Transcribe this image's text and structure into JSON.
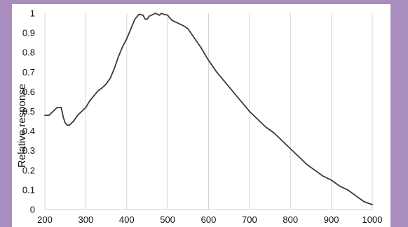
{
  "chart_data": {
    "type": "line",
    "title": "",
    "xlabel": "",
    "ylabel": "Relative response",
    "xlim": [
      200,
      1000
    ],
    "ylim": [
      0,
      1
    ],
    "x_ticks": [
      200,
      300,
      400,
      500,
      600,
      700,
      800,
      900,
      1000
    ],
    "y_ticks": [
      0,
      0.1,
      0.2,
      0.3,
      0.4,
      0.5,
      0.6,
      0.7,
      0.8,
      0.9,
      1
    ],
    "y_tick_labels": [
      "0",
      "0.1",
      "0.2",
      "0.3",
      "0.4",
      "0.5",
      "0.6",
      "0.7",
      "0.8",
      "0.9",
      "1"
    ],
    "grid": {
      "vertical": true,
      "horizontal": false
    },
    "series": [
      {
        "color": "#3a3a3a",
        "x": [
          200,
          210,
          220,
          230,
          240,
          245,
          250,
          255,
          260,
          270,
          280,
          290,
          300,
          310,
          320,
          330,
          340,
          350,
          360,
          370,
          380,
          390,
          400,
          410,
          420,
          430,
          440,
          445,
          450,
          455,
          460,
          470,
          480,
          485,
          490,
          500,
          510,
          520,
          530,
          540,
          550,
          560,
          570,
          580,
          600,
          620,
          640,
          660,
          680,
          700,
          720,
          740,
          760,
          780,
          800,
          820,
          840,
          860,
          880,
          900,
          920,
          940,
          960,
          980,
          1000
        ],
        "y": [
          0.48,
          0.48,
          0.5,
          0.52,
          0.52,
          0.47,
          0.44,
          0.43,
          0.43,
          0.45,
          0.48,
          0.5,
          0.52,
          0.555,
          0.58,
          0.605,
          0.62,
          0.64,
          0.67,
          0.72,
          0.78,
          0.83,
          0.87,
          0.92,
          0.97,
          0.995,
          0.99,
          0.97,
          0.97,
          0.985,
          0.99,
          1.0,
          0.99,
          1.0,
          0.995,
          0.99,
          0.965,
          0.955,
          0.945,
          0.935,
          0.92,
          0.89,
          0.86,
          0.83,
          0.76,
          0.7,
          0.65,
          0.6,
          0.55,
          0.5,
          0.46,
          0.42,
          0.39,
          0.35,
          0.31,
          0.27,
          0.23,
          0.2,
          0.17,
          0.15,
          0.12,
          0.1,
          0.07,
          0.04,
          0.025
        ]
      }
    ]
  }
}
